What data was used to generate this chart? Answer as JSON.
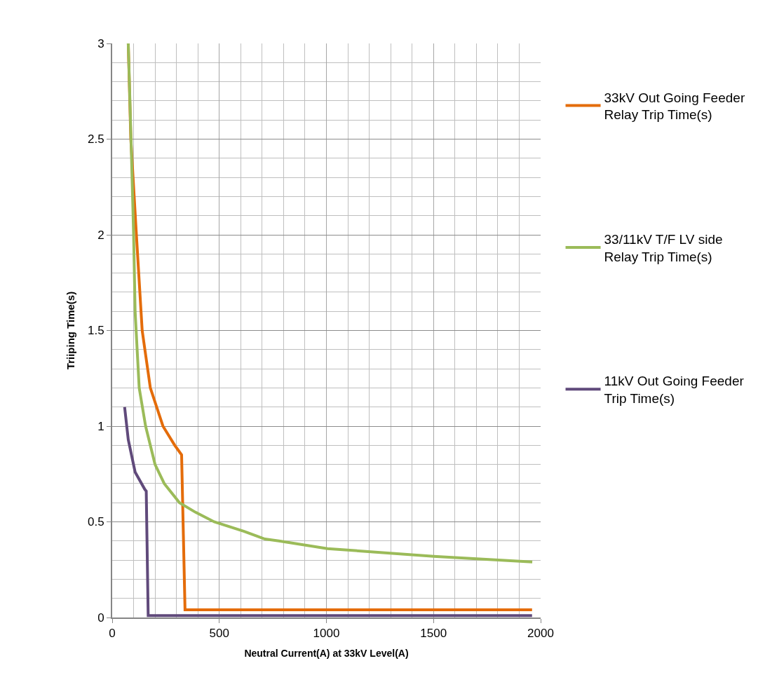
{
  "chart_data": {
    "type": "line",
    "xlabel": "Neutral Current(A) at 33kV Level(A)",
    "ylabel": "Triiping Time(s)",
    "xlim": [
      0,
      2000
    ],
    "ylim": [
      0,
      3
    ],
    "xticks": [
      0,
      {
        "value": 100,
        "label": null
      },
      {
        "value": 200,
        "label": null
      },
      {
        "value": 300,
        "label": null
      },
      {
        "value": 400,
        "label": null
      },
      500,
      {
        "value": 600,
        "label": null
      },
      {
        "value": 700,
        "label": null
      },
      {
        "value": 800,
        "label": null
      },
      {
        "value": 900,
        "label": null
      },
      1000,
      {
        "value": 1100,
        "label": null
      },
      {
        "value": 1200,
        "label": null
      },
      {
        "value": 1300,
        "label": null
      },
      {
        "value": 1400,
        "label": null
      },
      1500,
      {
        "value": 1600,
        "label": null
      },
      {
        "value": 1700,
        "label": null
      },
      {
        "value": 1800,
        "label": null
      },
      {
        "value": 1900,
        "label": null
      },
      2000
    ],
    "yticks": [
      0,
      {
        "value": 0.1,
        "label": null
      },
      {
        "value": 0.2,
        "label": null
      },
      {
        "value": 0.3,
        "label": null
      },
      {
        "value": 0.4,
        "label": null
      },
      0.5,
      {
        "value": 0.6,
        "label": null
      },
      {
        "value": 0.7,
        "label": null
      },
      {
        "value": 0.8,
        "label": null
      },
      {
        "value": 0.9,
        "label": null
      },
      1,
      {
        "value": 1.1,
        "label": null
      },
      {
        "value": 1.2,
        "label": null
      },
      {
        "value": 1.3,
        "label": null
      },
      {
        "value": 1.4,
        "label": null
      },
      1.5,
      {
        "value": 1.6,
        "label": null
      },
      {
        "value": 1.7,
        "label": null
      },
      {
        "value": 1.8,
        "label": null
      },
      {
        "value": 1.9,
        "label": null
      },
      2,
      {
        "value": 2.1,
        "label": null
      },
      {
        "value": 2.2,
        "label": null
      },
      {
        "value": 2.3,
        "label": null
      },
      {
        "value": 2.4,
        "label": null
      },
      2.5,
      {
        "value": 2.6,
        "label": null
      },
      {
        "value": 2.7,
        "label": null
      },
      {
        "value": 2.8,
        "label": null
      },
      {
        "value": 2.9,
        "label": null
      },
      3
    ],
    "grid": true,
    "legend": "right",
    "marker": "none",
    "line_style": "solid",
    "series": [
      {
        "name": "33kV Out Going Feeder Relay Trip Time(s)",
        "color": "#e46c0a",
        "x": [
          75,
          87,
          113,
          140,
          178,
          237,
          292,
          324,
          340,
          1960
        ],
        "values": [
          3,
          2.5,
          2,
          1.5,
          1.2,
          1.0,
          0.9,
          0.85,
          0.04,
          0.04
        ]
      },
      {
        "name": "33/11kV T/F LV side Relay Trip Time(s)",
        "color": "#9bbb59",
        "x": [
          75,
          88,
          100,
          107,
          126,
          156,
          200,
          243,
          314,
          389,
          476,
          616,
          713,
          778,
          1005,
          1501,
          1961
        ],
        "values": [
          3,
          2.5,
          2,
          1.6,
          1.2,
          1.0,
          0.8,
          0.7,
          0.6,
          0.55,
          0.5,
          0.45,
          0.41,
          0.4,
          0.36,
          0.32,
          0.29
        ]
      },
      {
        "name": "11kV Out Going Feeder Trip Time(s)",
        "color": "#604a7b",
        "x": [
          58,
          75,
          107,
          152,
          159,
          168,
          1960
        ],
        "values": [
          1.1,
          0.93,
          0.76,
          0.67,
          0.66,
          0.01,
          0.01
        ]
      }
    ]
  }
}
